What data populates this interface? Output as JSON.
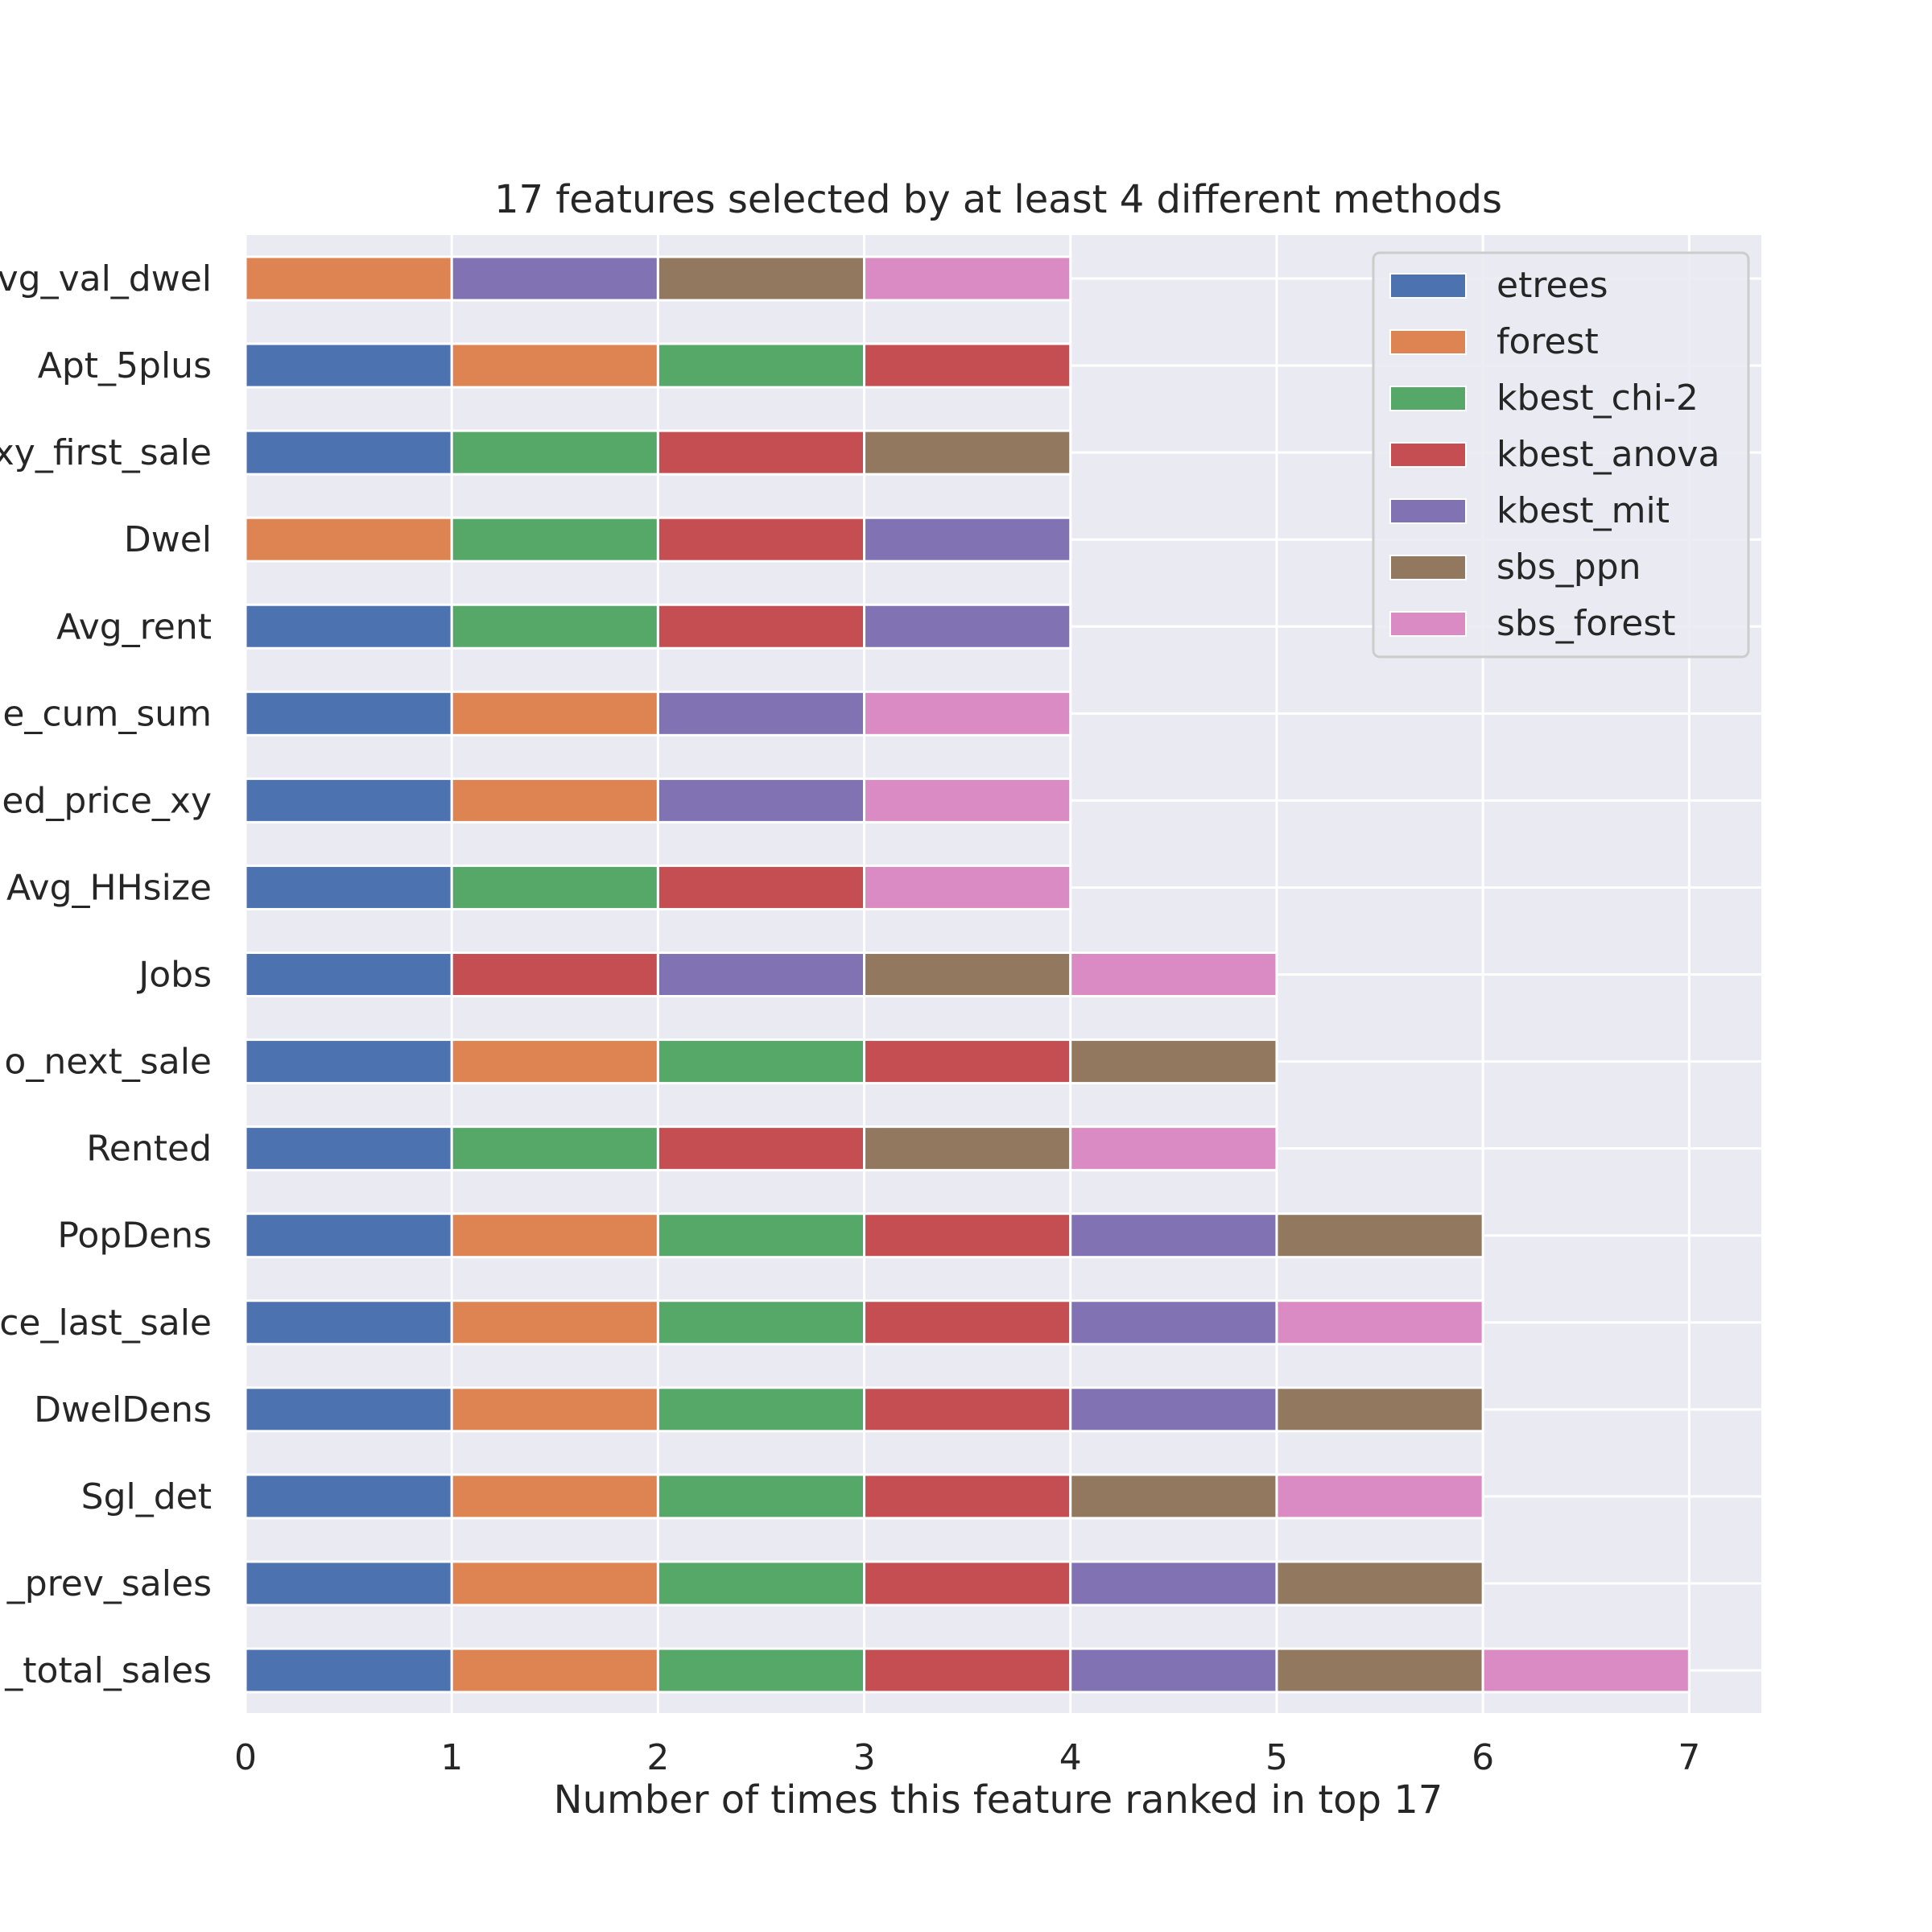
{
  "chart_data": {
    "type": "bar",
    "orientation": "horizontal",
    "stacked": true,
    "title": "17 features selected by at least 4 different methods",
    "xlabel": "Number of times this feature ranked in top 17",
    "ylabel": "",
    "xlim": [
      0,
      7.35
    ],
    "xticks": [
      0,
      1,
      2,
      3,
      4,
      5,
      6,
      7
    ],
    "grid": true,
    "legend_position": "top-right",
    "categories": [
      "vg_val_dwel",
      "Apt_5plus",
      "xy_first_sale",
      "Dwel",
      "Avg_rent",
      "e_cum_sum",
      "ed_price_xy",
      "Avg_HHsize",
      "Jobs",
      "o_next_sale",
      "Rented",
      "PopDens",
      "ce_last_sale",
      "DwelDens",
      "Sgl_det",
      "_prev_sales",
      "_total_sales"
    ],
    "series": [
      {
        "name": "etrees",
        "color": "#4c72b0",
        "values": [
          0,
          1,
          1,
          0,
          1,
          1,
          1,
          1,
          1,
          1,
          1,
          1,
          1,
          1,
          1,
          1,
          1
        ]
      },
      {
        "name": "forest",
        "color": "#dd8452",
        "values": [
          1,
          1,
          0,
          1,
          0,
          1,
          1,
          0,
          0,
          1,
          0,
          1,
          1,
          1,
          1,
          1,
          1
        ]
      },
      {
        "name": "kbest_chi-2",
        "color": "#55a868",
        "values": [
          0,
          1,
          1,
          1,
          1,
          0,
          0,
          1,
          0,
          1,
          1,
          1,
          1,
          1,
          1,
          1,
          1
        ]
      },
      {
        "name": "kbest_anova",
        "color": "#c44e52",
        "values": [
          0,
          1,
          1,
          1,
          1,
          0,
          0,
          1,
          1,
          1,
          1,
          1,
          1,
          1,
          1,
          1,
          1
        ]
      },
      {
        "name": "kbest_mit",
        "color": "#8172b3",
        "values": [
          1,
          0,
          0,
          1,
          1,
          1,
          1,
          0,
          1,
          0,
          0,
          1,
          1,
          1,
          0,
          1,
          1
        ]
      },
      {
        "name": "sbs_ppn",
        "color": "#937860",
        "values": [
          1,
          0,
          1,
          0,
          0,
          0,
          0,
          0,
          1,
          1,
          1,
          1,
          0,
          1,
          1,
          1,
          1
        ]
      },
      {
        "name": "sbs_forest",
        "color": "#da8bc3",
        "values": [
          1,
          0,
          0,
          0,
          0,
          1,
          1,
          1,
          1,
          0,
          1,
          0,
          1,
          0,
          1,
          0,
          1
        ]
      }
    ]
  }
}
